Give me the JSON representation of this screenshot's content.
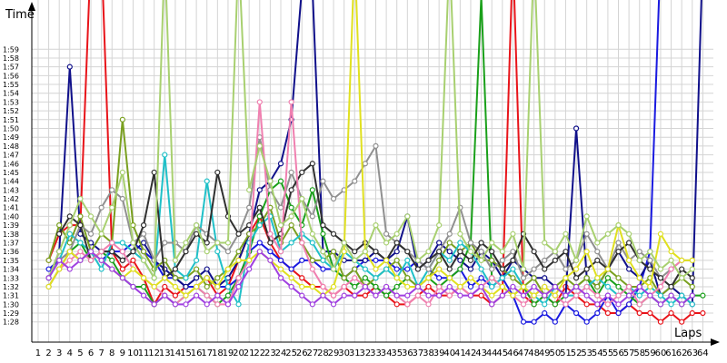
{
  "chart_data": {
    "type": "line",
    "y_axis_label": "Time",
    "x_axis_label": "Laps",
    "x": [
      1,
      2,
      3,
      4,
      5,
      6,
      7,
      8,
      9,
      10,
      11,
      12,
      13,
      14,
      15,
      16,
      17,
      18,
      19,
      20,
      21,
      22,
      23,
      24,
      25,
      26,
      27,
      28,
      29,
      30,
      31,
      32,
      33,
      34,
      35,
      36,
      37,
      38,
      39,
      40,
      41,
      42,
      43,
      44,
      45,
      46,
      47,
      48,
      49,
      50,
      51,
      52,
      53,
      54,
      55,
      56,
      57,
      58,
      59,
      60,
      61,
      62,
      63,
      64
    ],
    "xlim": [
      0.4,
      65
    ],
    "xticks": [
      1,
      2,
      3,
      4,
      5,
      6,
      7,
      8,
      9,
      10,
      11,
      12,
      13,
      14,
      15,
      16,
      17,
      18,
      19,
      20,
      21,
      22,
      23,
      24,
      25,
      26,
      27,
      28,
      29,
      30,
      31,
      32,
      33,
      34,
      35,
      36,
      37,
      38,
      39,
      40,
      41,
      42,
      43,
      44,
      45,
      46,
      47,
      48,
      49,
      50,
      51,
      52,
      53,
      54,
      55,
      56,
      57,
      58,
      59,
      60,
      61,
      62,
      63,
      64
    ],
    "ylim": [
      85.7,
      124.6
    ],
    "yticks": [
      {
        "value": 88,
        "label": "1:28"
      },
      {
        "value": 89,
        "label": "1:29"
      },
      {
        "value": 90,
        "label": "1:30"
      },
      {
        "value": 91,
        "label": "1:31"
      },
      {
        "value": 92,
        "label": "1:32"
      },
      {
        "value": 93,
        "label": "1:33"
      },
      {
        "value": 94,
        "label": "1:34"
      },
      {
        "value": 95,
        "label": "1:35"
      },
      {
        "value": 96,
        "label": "1:36"
      },
      {
        "value": 97,
        "label": "1:37"
      },
      {
        "value": 98,
        "label": "1:38"
      },
      {
        "value": 99,
        "label": "1:39"
      },
      {
        "value": 100,
        "label": "1:40"
      },
      {
        "value": 101,
        "label": "1:41"
      },
      {
        "value": 102,
        "label": "1:42"
      },
      {
        "value": 103,
        "label": "1:43"
      },
      {
        "value": 104,
        "label": "1:44"
      },
      {
        "value": 105,
        "label": "1:45"
      },
      {
        "value": 106,
        "label": "1:46"
      },
      {
        "value": 107,
        "label": "1:47"
      },
      {
        "value": 108,
        "label": "1:48"
      },
      {
        "value": 109,
        "label": "1:49"
      },
      {
        "value": 110,
        "label": "1:50"
      },
      {
        "value": 111,
        "label": "1:51"
      },
      {
        "value": 112,
        "label": "1:52"
      },
      {
        "value": 113,
        "label": "1:53"
      },
      {
        "value": 114,
        "label": "1:54"
      },
      {
        "value": 115,
        "label": "1:55"
      },
      {
        "value": 116,
        "label": "1:56"
      },
      {
        "value": 117,
        "label": "1:57"
      },
      {
        "value": 118,
        "label": "1:58"
      },
      {
        "value": 119,
        "label": "1:59"
      }
    ],
    "grid": true,
    "series": [
      {
        "color": "#e8141a",
        "values": [
          null,
          95,
          98,
          99,
          99,
          130,
          130,
          96,
          94,
          95,
          93,
          90,
          92,
          91,
          92,
          92,
          93,
          91,
          92,
          95,
          98,
          100,
          97,
          95,
          94,
          93,
          92,
          92,
          91,
          92,
          91,
          91,
          92,
          91,
          90,
          90,
          91,
          92,
          91,
          91,
          92,
          91,
          91,
          90,
          91,
          130,
          91,
          90,
          91,
          90,
          92,
          91,
          90,
          90,
          89,
          89,
          90,
          89,
          89,
          88,
          89,
          88,
          89,
          89
        ]
      },
      {
        "color": "#1a1ae0",
        "values": [
          null,
          94,
          95,
          96,
          95,
          96,
          95,
          96,
          96,
          97,
          96,
          95,
          93,
          93,
          92,
          92,
          93,
          92,
          92,
          93,
          96,
          97,
          96,
          95,
          94,
          95,
          95,
          94,
          94,
          93,
          94,
          95,
          95,
          95,
          94,
          94,
          95,
          94,
          93,
          93,
          94,
          92,
          93,
          92,
          93,
          91,
          88,
          88,
          89,
          88,
          90,
          89,
          88,
          89,
          91,
          89,
          90,
          92,
          96,
          130,
          null,
          null,
          null,
          null
        ]
      },
      {
        "color": "#10108a",
        "values": [
          null,
          93,
          96,
          117,
          98,
          97,
          96,
          96,
          95,
          96,
          97,
          95,
          94,
          93,
          92,
          93,
          94,
          92,
          93,
          95,
          98,
          103,
          104,
          106,
          111,
          126,
          126,
          96,
          96,
          95,
          95,
          95,
          96,
          95,
          96,
          100,
          94,
          95,
          97,
          96,
          95,
          94,
          96,
          95,
          93,
          95,
          94,
          93,
          93,
          92,
          91,
          110,
          93,
          92,
          94,
          96,
          94,
          93,
          95,
          91,
          92,
          91,
          90,
          130
        ]
      },
      {
        "color": "#1aa01a",
        "values": [
          null,
          92,
          94,
          96,
          97,
          95,
          96,
          95,
          93,
          92,
          92,
          90,
          91,
          90,
          91,
          92,
          91,
          90,
          91,
          93,
          96,
          100,
          103,
          104,
          101,
          99,
          103,
          98,
          94,
          93,
          92,
          93,
          92,
          91,
          92,
          93,
          92,
          93,
          92,
          93,
          94,
          97,
          125,
          93,
          92,
          91,
          92,
          90,
          91,
          90,
          91,
          92,
          93,
          91,
          93,
          92,
          91,
          90,
          91,
          90,
          91,
          90,
          91,
          91
        ]
      },
      {
        "color": "#7aa020",
        "values": [
          null,
          95,
          99,
          97,
          100,
          96,
          98,
          97,
          111,
          99,
          96,
          94,
          95,
          93,
          93,
          94,
          92,
          93,
          94,
          96,
          98,
          99,
          101,
          97,
          99,
          97,
          95,
          95,
          96,
          93,
          94,
          92,
          93,
          94,
          95,
          93,
          92,
          93,
          95,
          97,
          96,
          97,
          95,
          95,
          94,
          93,
          92,
          93,
          91,
          92,
          93,
          92,
          93,
          92,
          94,
          93,
          92,
          92,
          93,
          91,
          92,
          93,
          92,
          null
        ]
      },
      {
        "color": "#20c0c8",
        "values": [
          null,
          93,
          95,
          98,
          97,
          96,
          94,
          97,
          97,
          96,
          95,
          93,
          107,
          94,
          93,
          95,
          104,
          96,
          92,
          90,
          97,
          99,
          100,
          96,
          97,
          98,
          97,
          95,
          94,
          96,
          95,
          94,
          93,
          94,
          93,
          95,
          92,
          94,
          96,
          95,
          97,
          96,
          94,
          92,
          93,
          94,
          92,
          91,
          90,
          92,
          91,
          91,
          92,
          93,
          92,
          91,
          92,
          91,
          92,
          91,
          90,
          91,
          90,
          null
        ]
      },
      {
        "color": "#909090",
        "values": [
          null,
          93,
          95,
          96,
          99,
          98,
          101,
          103,
          102,
          97,
          98,
          95,
          97,
          97,
          96,
          99,
          98,
          97,
          96,
          98,
          101,
          109,
          103,
          101,
          105,
          102,
          100,
          104,
          102,
          103,
          104,
          106,
          108,
          98,
          97,
          96,
          95,
          94,
          96,
          98,
          101,
          97,
          96,
          94,
          95,
          96,
          93,
          94,
          95,
          96,
          94,
          95,
          98,
          96,
          94,
          97,
          95,
          96,
          95,
          93,
          94,
          95,
          95,
          null
        ]
      },
      {
        "color": "#303030",
        "values": [
          null,
          null,
          98,
          100,
          99,
          95,
          96,
          96,
          95,
          96,
          99,
          105,
          93,
          94,
          96,
          98,
          97,
          105,
          100,
          98,
          99,
          101,
          97,
          98,
          103,
          105,
          106,
          99,
          98,
          97,
          96,
          97,
          96,
          95,
          97,
          96,
          94,
          95,
          96,
          94,
          96,
          95,
          97,
          96,
          94,
          95,
          98,
          96,
          94,
          95,
          96,
          93,
          94,
          95,
          94,
          96,
          97,
          95,
          94,
          93,
          92,
          94,
          93,
          null
        ]
      },
      {
        "color": "#f080b0",
        "values": [
          null,
          92,
          94,
          95,
          96,
          95,
          96,
          97,
          96,
          94,
          93,
          92,
          91,
          90,
          91,
          92,
          91,
          90,
          90,
          93,
          95,
          113,
          98,
          96,
          113,
          97,
          94,
          92,
          91,
          92,
          93,
          92,
          91,
          92,
          91,
          90,
          91,
          90,
          92,
          91,
          92,
          91,
          92,
          93,
          92,
          91,
          90,
          91,
          92,
          91,
          90,
          91,
          92,
          91,
          90,
          91,
          92,
          90,
          91,
          92,
          94,
          95,
          null,
          null
        ]
      },
      {
        "color": "#e0e020",
        "values": [
          null,
          92,
          94,
          96,
          95,
          96,
          95,
          94,
          93,
          94,
          93,
          92,
          93,
          92,
          91,
          92,
          93,
          92,
          94,
          95,
          95,
          96,
          95,
          94,
          93,
          92,
          92,
          91,
          92,
          96,
          130,
          96,
          94,
          95,
          93,
          92,
          92,
          93,
          94,
          93,
          92,
          93,
          92,
          91,
          92,
          91,
          92,
          91,
          92,
          91,
          93,
          94,
          96,
          93,
          94,
          99,
          95,
          93,
          92,
          98,
          96,
          95,
          95,
          null
        ]
      },
      {
        "color": "#a8d070",
        "values": [
          null,
          93,
          96,
          99,
          102,
          100,
          98,
          101,
          105,
          97,
          95,
          93,
          130,
          95,
          97,
          99,
          96,
          97,
          97,
          130,
          103,
          108,
          104,
          99,
          100,
          102,
          98,
          96,
          94,
          97,
          95,
          96,
          99,
          97,
          98,
          100,
          95,
          96,
          99,
          130,
          98,
          96,
          95,
          97,
          96,
          98,
          94,
          130,
          97,
          96,
          98,
          95,
          100,
          97,
          98,
          99,
          98,
          95,
          96,
          94,
          95,
          93,
          94,
          null
        ]
      },
      {
        "color": "#a040e0",
        "values": [
          null,
          93,
          95,
          94,
          95,
          96,
          95,
          94,
          93,
          92,
          91,
          90,
          91,
          90,
          90,
          91,
          90,
          91,
          90,
          92,
          94,
          96,
          95,
          93,
          92,
          91,
          90,
          91,
          90,
          91,
          91,
          92,
          91,
          92,
          91,
          91,
          92,
          91,
          91,
          92,
          91,
          91,
          92,
          90,
          91,
          92,
          91,
          92,
          91,
          92,
          91,
          92,
          91,
          90,
          91,
          90,
          91,
          92,
          91,
          90,
          91,
          90,
          91,
          null
        ]
      }
    ]
  }
}
